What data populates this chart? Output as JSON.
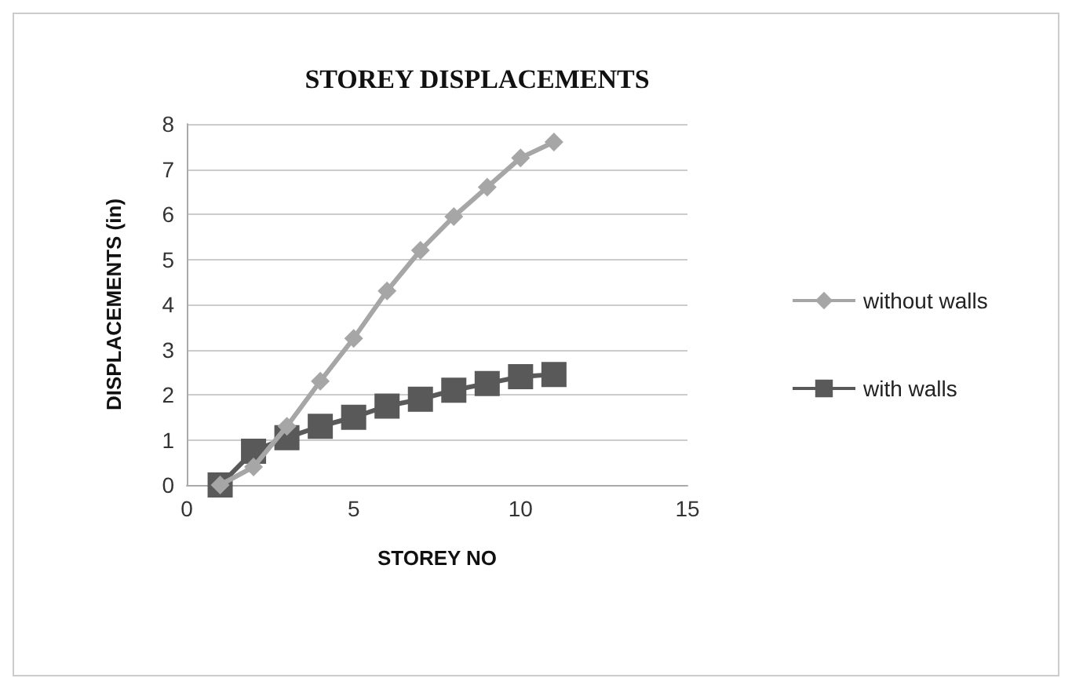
{
  "chart_data": {
    "type": "line",
    "title": "STOREY DISPLACEMENTS",
    "xlabel": "STOREY NO",
    "ylabel": "DISPLACEMENTS (in)",
    "x": [
      1,
      2,
      3,
      4,
      5,
      6,
      7,
      8,
      9,
      10,
      11
    ],
    "series": [
      {
        "name": "without walls",
        "color": "#a6a6a6",
        "marker": "diamond",
        "values": [
          0,
          0.4,
          1.3,
          2.3,
          3.25,
          4.3,
          5.2,
          5.95,
          6.6,
          7.25,
          7.6
        ]
      },
      {
        "name": "with walls",
        "color": "#595959",
        "marker": "square",
        "values": [
          0,
          0.75,
          1.05,
          1.3,
          1.5,
          1.75,
          1.9,
          2.1,
          2.25,
          2.4,
          2.45
        ]
      }
    ],
    "xlim": [
      0,
      15
    ],
    "xticks": [
      0,
      5,
      10,
      15
    ],
    "ylim": [
      0,
      8
    ],
    "yticks": [
      0,
      1,
      2,
      3,
      4,
      5,
      6,
      7,
      8
    ],
    "grid": "y",
    "legend": "right"
  }
}
